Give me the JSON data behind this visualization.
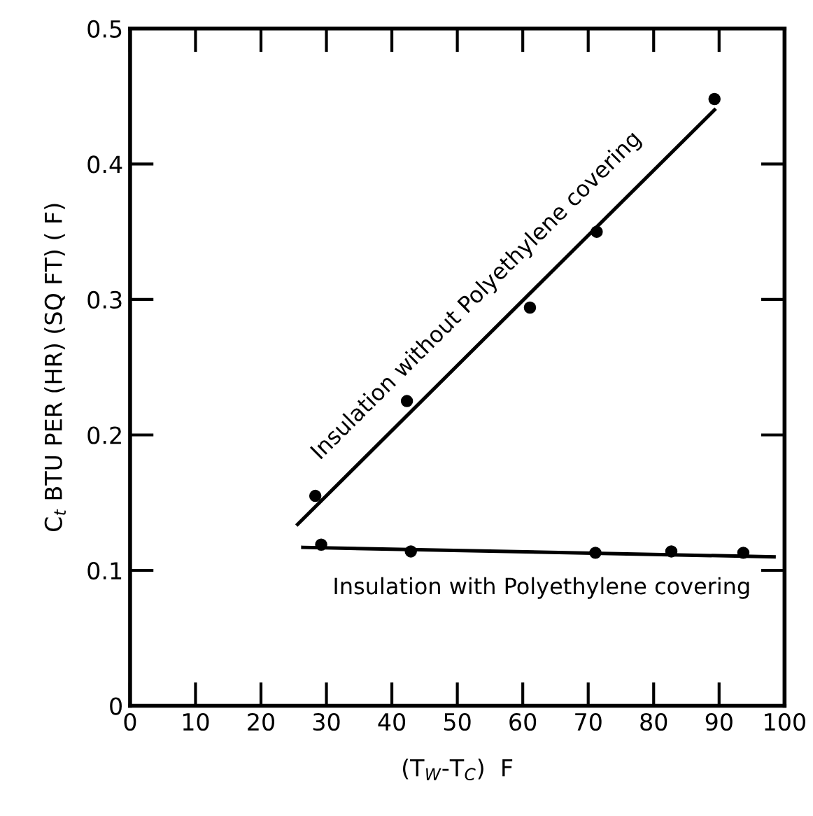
{
  "chart_data": {
    "type": "scatter",
    "xlabel": "(T$_{W}$-T$_{C}$)  F",
    "ylabel": "C$_{t}$ BTU PER (HR) (SQ FT) ( F)",
    "xlim": [
      0,
      100
    ],
    "xticks": [
      0,
      10,
      20,
      30,
      40,
      50,
      60,
      70,
      80,
      90,
      100
    ],
    "ylim": [
      0,
      0.5
    ],
    "yticks": [
      0,
      0.1,
      0.2,
      0.3,
      0.4,
      0.5
    ],
    "grid": false,
    "marker": "circle",
    "series": [
      {
        "color": "#000000",
        "x": [
          28.3,
          42.3,
          61.1,
          71.3,
          89.3
        ],
        "values": [
          0.155,
          0.225,
          0.294,
          0.35,
          0.448
        ]
      },
      {
        "type": "line",
        "name": "Insulation without Polyethylene covering",
        "color": "#000000",
        "line_style": "solid",
        "marker": "none",
        "x": [
          25.6,
          89.3
        ],
        "values": [
          0.134,
          0.44
        ]
      },
      {
        "color": "#000000",
        "x": [
          29.2,
          42.9,
          71.1,
          82.7,
          93.7
        ],
        "values": [
          0.119,
          0.114,
          0.113,
          0.114,
          0.113
        ]
      },
      {
        "type": "line",
        "name": "Insulation with Polyethylene covering",
        "color": "#000000",
        "line_style": "solid",
        "marker": "none",
        "x": [
          26.4,
          98.4
        ],
        "values": [
          0.117,
          0.11
        ]
      }
    ]
  }
}
